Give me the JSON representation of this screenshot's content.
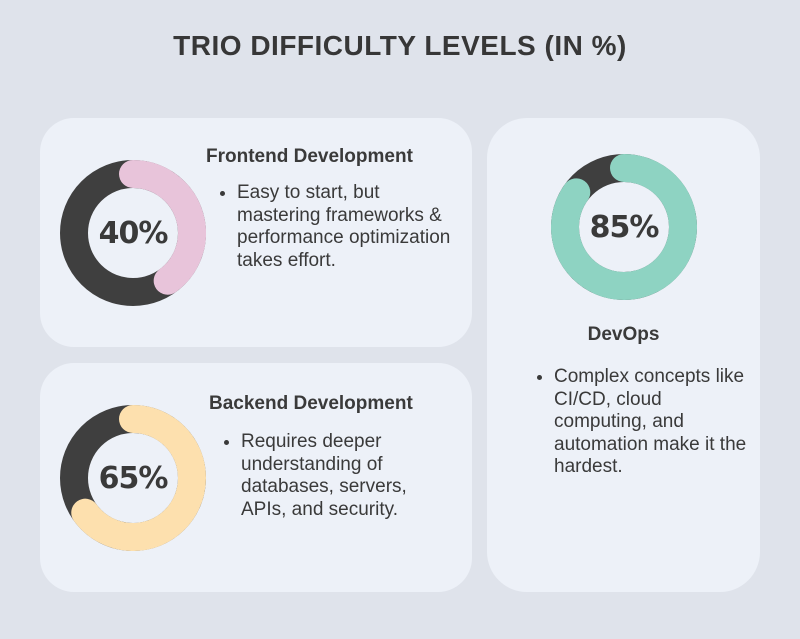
{
  "title": "TRIO DIFFICULTY LEVELS (IN %)",
  "colors": {
    "dark": "#3f3f3f",
    "frontend": "#e8c4da",
    "backend": "#fde0ae",
    "devops": "#8ed3c2"
  },
  "cards": {
    "frontend": {
      "heading": "Frontend Development",
      "percent_label": "40%",
      "description": "Easy to start, but mastering frameworks & performance optimization takes effort."
    },
    "backend": {
      "heading": "Backend Development",
      "percent_label": "65%",
      "description": "Requires deeper understanding of databases, servers, APIs, and security."
    },
    "devops": {
      "heading": "DevOps",
      "percent_label": "85%",
      "description": "Complex concepts like CI/CD, cloud computing, and automation make it the hardest."
    }
  },
  "chart_data": {
    "type": "pie",
    "title": "TRIO DIFFICULTY LEVELS (IN %)",
    "categories": [
      "Frontend Development",
      "Backend Development",
      "DevOps"
    ],
    "values": [
      40,
      65,
      85
    ],
    "max": 100,
    "style": "donut"
  }
}
